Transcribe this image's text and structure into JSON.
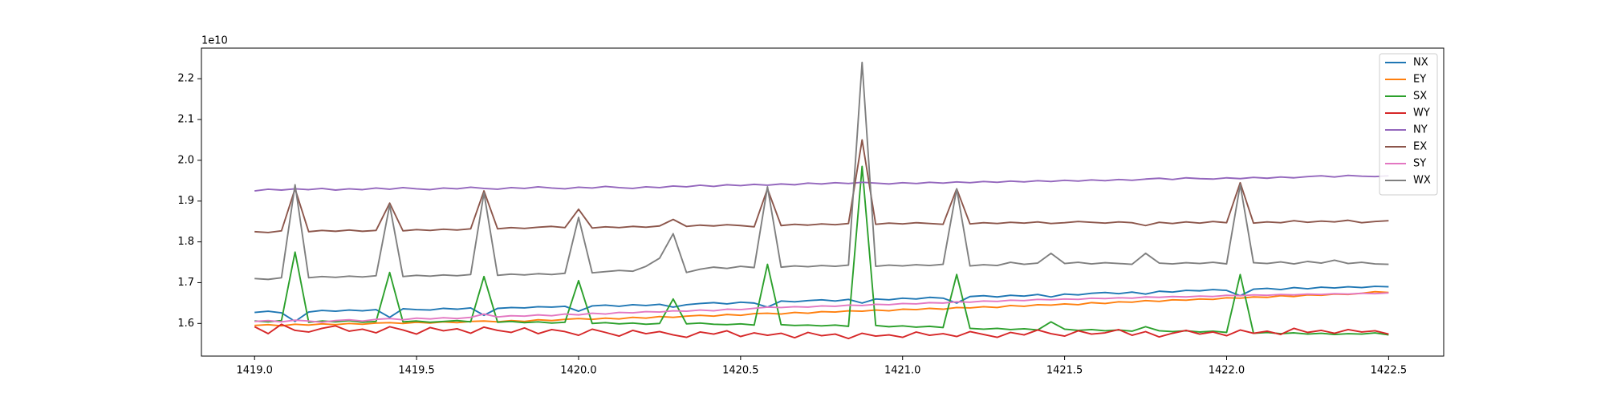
{
  "chart_data": {
    "type": "line",
    "y_offset_label": "1e10",
    "xlim": [
      1418.836,
      1422.67
    ],
    "ylim": [
      1.52,
      2.275
    ],
    "xticks": [
      {
        "value": 1419,
        "label": "1419.0"
      },
      {
        "value": 1419.5,
        "label": "1419.5"
      },
      {
        "value": 1420,
        "label": "1420.0"
      },
      {
        "value": 1420.5,
        "label": "1420.5"
      },
      {
        "value": 1421,
        "label": "1421.0"
      },
      {
        "value": 1421.5,
        "label": "1421.5"
      },
      {
        "value": 1422,
        "label": "1422.0"
      },
      {
        "value": 1422.5,
        "label": "1422.5"
      }
    ],
    "yticks": [
      1.6,
      1.7,
      1.8,
      1.9,
      {
        "value": 2,
        "label": "2.0"
      },
      2.1,
      2.2
    ],
    "legend": "upper right",
    "x": [
      1419,
      1419.042,
      1419.083,
      1419.125,
      1419.167,
      1419.208,
      1419.25,
      1419.292,
      1419.333,
      1419.375,
      1419.417,
      1419.458,
      1419.5,
      1419.542,
      1419.583,
      1419.625,
      1419.667,
      1419.708,
      1419.75,
      1419.792,
      1419.833,
      1419.875,
      1419.917,
      1419.958,
      1420,
      1420.042,
      1420.083,
      1420.125,
      1420.167,
      1420.208,
      1420.25,
      1420.292,
      1420.333,
      1420.375,
      1420.417,
      1420.458,
      1420.5,
      1420.542,
      1420.583,
      1420.625,
      1420.667,
      1420.708,
      1420.75,
      1420.792,
      1420.833,
      1420.875,
      1420.917,
      1420.958,
      1421,
      1421.042,
      1421.083,
      1421.125,
      1421.167,
      1421.208,
      1421.25,
      1421.292,
      1421.333,
      1421.375,
      1421.417,
      1421.458,
      1421.5,
      1421.542,
      1421.583,
      1421.625,
      1421.667,
      1421.708,
      1421.75,
      1421.792,
      1421.833,
      1421.875,
      1421.917,
      1421.958,
      1422,
      1422.042,
      1422.083,
      1422.125,
      1422.167,
      1422.208,
      1422.25,
      1422.292,
      1422.333,
      1422.375,
      1422.417,
      1422.458,
      1422.5
    ],
    "series": [
      {
        "name": "NX",
        "color": "#1f77b4",
        "values": [
          1.627,
          1.63,
          1.626,
          1.605,
          1.628,
          1.632,
          1.63,
          1.633,
          1.631,
          1.634,
          1.615,
          1.636,
          1.634,
          1.633,
          1.637,
          1.635,
          1.638,
          1.62,
          1.637,
          1.639,
          1.638,
          1.641,
          1.64,
          1.642,
          1.63,
          1.643,
          1.645,
          1.642,
          1.646,
          1.644,
          1.647,
          1.64,
          1.646,
          1.649,
          1.651,
          1.648,
          1.652,
          1.65,
          1.64,
          1.655,
          1.653,
          1.656,
          1.658,
          1.655,
          1.659,
          1.65,
          1.66,
          1.658,
          1.662,
          1.66,
          1.664,
          1.662,
          1.65,
          1.666,
          1.668,
          1.665,
          1.669,
          1.667,
          1.671,
          1.665,
          1.672,
          1.67,
          1.674,
          1.676,
          1.673,
          1.677,
          1.672,
          1.679,
          1.677,
          1.681,
          1.68,
          1.683,
          1.681,
          1.668,
          1.684,
          1.686,
          1.683,
          1.688,
          1.685,
          1.689,
          1.687,
          1.69,
          1.688,
          1.691,
          1.69
        ]
      },
      {
        "name": "EY",
        "color": "#ff7f0e",
        "values": [
          1.595,
          1.597,
          1.594,
          1.598,
          1.596,
          1.599,
          1.597,
          1.6,
          1.598,
          1.601,
          1.602,
          1.6,
          1.603,
          1.601,
          1.604,
          1.602,
          1.605,
          1.606,
          1.604,
          1.607,
          1.605,
          1.609,
          1.607,
          1.61,
          1.612,
          1.61,
          1.613,
          1.611,
          1.615,
          1.613,
          1.617,
          1.615,
          1.618,
          1.62,
          1.618,
          1.622,
          1.62,
          1.624,
          1.625,
          1.623,
          1.627,
          1.625,
          1.629,
          1.628,
          1.631,
          1.63,
          1.633,
          1.631,
          1.635,
          1.634,
          1.637,
          1.635,
          1.639,
          1.638,
          1.641,
          1.639,
          1.644,
          1.642,
          1.646,
          1.645,
          1.648,
          1.646,
          1.651,
          1.649,
          1.653,
          1.652,
          1.656,
          1.654,
          1.658,
          1.657,
          1.66,
          1.659,
          1.663,
          1.662,
          1.665,
          1.664,
          1.668,
          1.666,
          1.67,
          1.669,
          1.672,
          1.671,
          1.674,
          1.678,
          1.676
        ]
      },
      {
        "name": "SX",
        "color": "#2ca02c",
        "values": [
          1.606,
          1.604,
          1.607,
          1.775,
          1.603,
          1.606,
          1.604,
          1.607,
          1.603,
          1.605,
          1.725,
          1.604,
          1.606,
          1.603,
          1.605,
          1.607,
          1.604,
          1.715,
          1.603,
          1.605,
          1.602,
          1.604,
          1.601,
          1.603,
          1.705,
          1.6,
          1.602,
          1.599,
          1.601,
          1.598,
          1.6,
          1.66,
          1.599,
          1.601,
          1.598,
          1.597,
          1.599,
          1.596,
          1.745,
          1.597,
          1.595,
          1.596,
          1.594,
          1.596,
          1.593,
          1.985,
          1.595,
          1.592,
          1.594,
          1.591,
          1.593,
          1.59,
          1.72,
          1.588,
          1.586,
          1.588,
          1.585,
          1.587,
          1.584,
          1.604,
          1.586,
          1.583,
          1.585,
          1.582,
          1.584,
          1.581,
          1.592,
          1.582,
          1.58,
          1.582,
          1.579,
          1.581,
          1.578,
          1.72,
          1.576,
          1.578,
          1.575,
          1.577,
          1.574,
          1.576,
          1.573,
          1.575,
          1.574,
          1.577,
          1.572
        ]
      },
      {
        "name": "WY",
        "color": "#d62728",
        "values": [
          1.592,
          1.575,
          1.598,
          1.583,
          1.579,
          1.588,
          1.594,
          1.581,
          1.586,
          1.577,
          1.592,
          1.584,
          1.574,
          1.59,
          1.582,
          1.587,
          1.576,
          1.591,
          1.583,
          1.578,
          1.589,
          1.575,
          1.585,
          1.58,
          1.571,
          1.586,
          1.578,
          1.569,
          1.583,
          1.575,
          1.58,
          1.572,
          1.566,
          1.579,
          1.574,
          1.582,
          1.568,
          1.577,
          1.571,
          1.576,
          1.565,
          1.578,
          1.57,
          1.574,
          1.563,
          1.576,
          1.569,
          1.572,
          1.566,
          1.579,
          1.571,
          1.575,
          1.568,
          1.58,
          1.573,
          1.566,
          1.578,
          1.572,
          1.584,
          1.575,
          1.569,
          1.582,
          1.574,
          1.577,
          1.585,
          1.571,
          1.58,
          1.567,
          1.576,
          1.583,
          1.574,
          1.579,
          1.57,
          1.584,
          1.576,
          1.581,
          1.573,
          1.588,
          1.578,
          1.583,
          1.576,
          1.585,
          1.579,
          1.582,
          1.574
        ]
      },
      {
        "name": "NY",
        "color": "#9467bd",
        "values": [
          1.925,
          1.929,
          1.927,
          1.93,
          1.928,
          1.931,
          1.927,
          1.93,
          1.928,
          1.932,
          1.929,
          1.933,
          1.93,
          1.928,
          1.932,
          1.93,
          1.934,
          1.931,
          1.929,
          1.933,
          1.931,
          1.935,
          1.932,
          1.93,
          1.934,
          1.932,
          1.936,
          1.933,
          1.931,
          1.935,
          1.933,
          1.937,
          1.935,
          1.939,
          1.936,
          1.94,
          1.938,
          1.941,
          1.939,
          1.942,
          1.94,
          1.944,
          1.942,
          1.945,
          1.943,
          1.946,
          1.944,
          1.942,
          1.945,
          1.943,
          1.946,
          1.944,
          1.947,
          1.945,
          1.948,
          1.946,
          1.949,
          1.947,
          1.95,
          1.948,
          1.951,
          1.949,
          1.952,
          1.95,
          1.953,
          1.951,
          1.954,
          1.956,
          1.953,
          1.957,
          1.955,
          1.954,
          1.957,
          1.955,
          1.958,
          1.956,
          1.959,
          1.957,
          1.96,
          1.962,
          1.959,
          1.963,
          1.961,
          1.96,
          1.962
        ]
      },
      {
        "name": "EX",
        "color": "#8c564b",
        "values": [
          1.825,
          1.823,
          1.827,
          1.93,
          1.825,
          1.828,
          1.826,
          1.829,
          1.826,
          1.828,
          1.895,
          1.827,
          1.83,
          1.828,
          1.831,
          1.829,
          1.832,
          1.925,
          1.832,
          1.835,
          1.833,
          1.836,
          1.838,
          1.835,
          1.88,
          1.834,
          1.837,
          1.835,
          1.838,
          1.836,
          1.839,
          1.855,
          1.838,
          1.841,
          1.839,
          1.842,
          1.84,
          1.837,
          1.93,
          1.84,
          1.843,
          1.841,
          1.844,
          1.842,
          1.845,
          2.05,
          1.843,
          1.846,
          1.844,
          1.847,
          1.845,
          1.843,
          1.93,
          1.844,
          1.847,
          1.845,
          1.848,
          1.846,
          1.849,
          1.845,
          1.847,
          1.85,
          1.848,
          1.846,
          1.849,
          1.847,
          1.84,
          1.848,
          1.845,
          1.849,
          1.846,
          1.85,
          1.847,
          1.945,
          1.846,
          1.849,
          1.847,
          1.852,
          1.848,
          1.851,
          1.849,
          1.853,
          1.847,
          1.85,
          1.852
        ]
      },
      {
        "name": "SY",
        "color": "#e377c2",
        "values": [
          1.605,
          1.607,
          1.604,
          1.608,
          1.606,
          1.603,
          1.607,
          1.609,
          1.606,
          1.61,
          1.612,
          1.609,
          1.613,
          1.611,
          1.614,
          1.612,
          1.615,
          1.623,
          1.616,
          1.619,
          1.618,
          1.621,
          1.619,
          1.623,
          1.621,
          1.625,
          1.623,
          1.627,
          1.626,
          1.629,
          1.628,
          1.631,
          1.63,
          1.633,
          1.631,
          1.635,
          1.634,
          1.637,
          1.64,
          1.639,
          1.641,
          1.64,
          1.643,
          1.642,
          1.645,
          1.644,
          1.647,
          1.646,
          1.649,
          1.648,
          1.651,
          1.65,
          1.653,
          1.652,
          1.655,
          1.654,
          1.657,
          1.656,
          1.659,
          1.658,
          1.66,
          1.659,
          1.662,
          1.661,
          1.663,
          1.662,
          1.665,
          1.664,
          1.666,
          1.665,
          1.667,
          1.666,
          1.669,
          1.668,
          1.67,
          1.669,
          1.671,
          1.67,
          1.672,
          1.671,
          1.673,
          1.672,
          1.674,
          1.673,
          1.675
        ]
      },
      {
        "name": "WX",
        "color": "#7f7f7f",
        "values": [
          1.71,
          1.708,
          1.712,
          1.94,
          1.712,
          1.715,
          1.713,
          1.716,
          1.714,
          1.717,
          1.89,
          1.715,
          1.718,
          1.716,
          1.719,
          1.717,
          1.72,
          1.92,
          1.718,
          1.721,
          1.719,
          1.722,
          1.72,
          1.723,
          1.86,
          1.724,
          1.727,
          1.73,
          1.728,
          1.74,
          1.76,
          1.82,
          1.725,
          1.733,
          1.738,
          1.735,
          1.74,
          1.737,
          1.935,
          1.738,
          1.741,
          1.739,
          1.742,
          1.74,
          1.743,
          2.24,
          1.74,
          1.743,
          1.741,
          1.744,
          1.742,
          1.745,
          1.93,
          1.741,
          1.744,
          1.742,
          1.75,
          1.745,
          1.748,
          1.772,
          1.747,
          1.75,
          1.746,
          1.749,
          1.747,
          1.745,
          1.772,
          1.748,
          1.746,
          1.749,
          1.747,
          1.75,
          1.746,
          1.94,
          1.749,
          1.747,
          1.751,
          1.746,
          1.752,
          1.748,
          1.755,
          1.747,
          1.75,
          1.746,
          1.745
        ]
      }
    ]
  }
}
